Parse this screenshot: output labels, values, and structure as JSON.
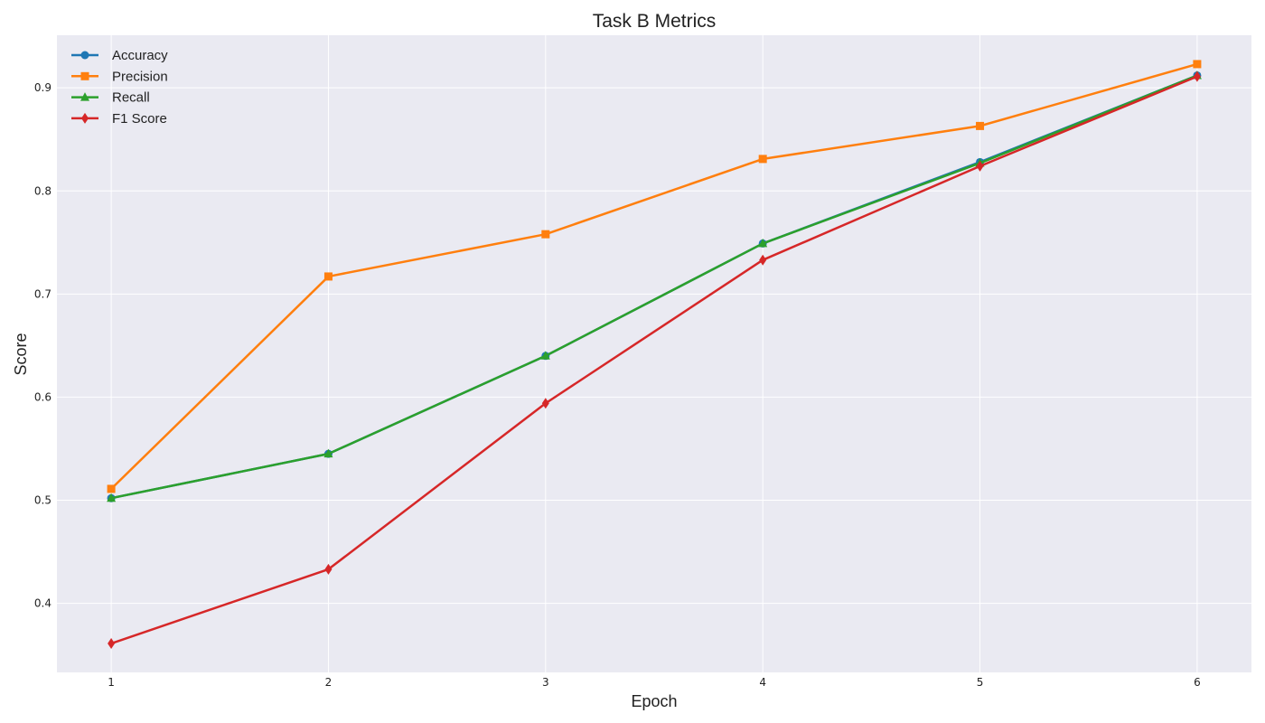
{
  "chart_data": {
    "type": "line",
    "title": "Task B Metrics",
    "xlabel": "Epoch",
    "ylabel": "Score",
    "x": [
      1,
      2,
      3,
      4,
      5,
      6
    ],
    "xlim": [
      0.75,
      6.25
    ],
    "ylim": [
      0.333,
      0.951
    ],
    "yticks": [
      0.4,
      0.5,
      0.6,
      0.7,
      0.8,
      0.9
    ],
    "grid": true,
    "legend_position": "top-left",
    "series": [
      {
        "name": "Accuracy",
        "color": "#1f77b4",
        "marker": "circle",
        "values": [
          0.502,
          0.545,
          0.64,
          0.749,
          0.828,
          0.912
        ]
      },
      {
        "name": "Precision",
        "color": "#ff7f0e",
        "marker": "square",
        "values": [
          0.511,
          0.717,
          0.758,
          0.831,
          0.863,
          0.923
        ]
      },
      {
        "name": "Recall",
        "color": "#2ca02c",
        "marker": "triangle",
        "values": [
          0.502,
          0.545,
          0.64,
          0.749,
          0.827,
          0.912
        ]
      },
      {
        "name": "F1 Score",
        "color": "#d62728",
        "marker": "diamond",
        "values": [
          0.361,
          0.433,
          0.594,
          0.733,
          0.824,
          0.911
        ]
      }
    ]
  }
}
